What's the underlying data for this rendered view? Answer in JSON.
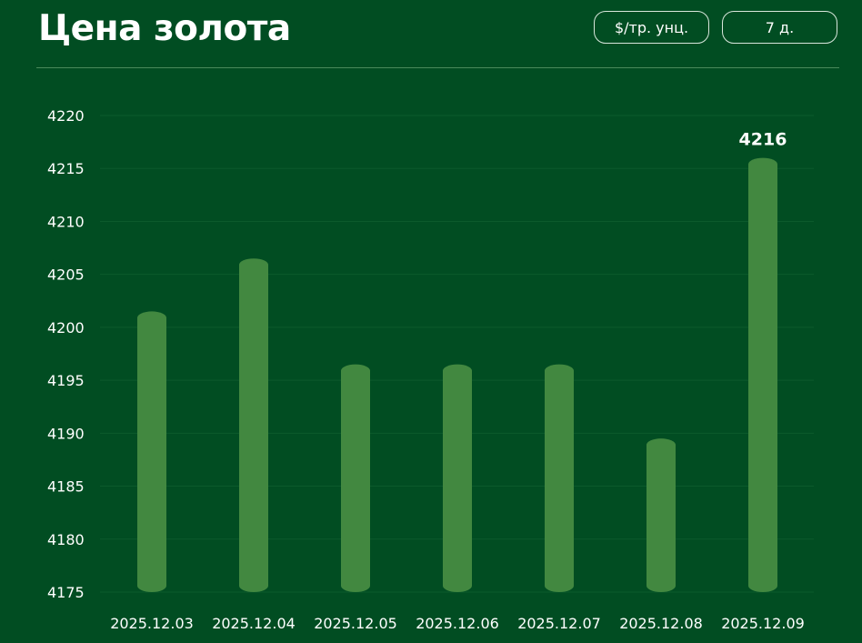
{
  "header": {
    "title": "Цена золота",
    "unit_button": "$/тр. унц.",
    "range_button": "7 д."
  },
  "colors": {
    "background": "#014d22",
    "bar": "#428840",
    "grid": "#0c5a2c"
  },
  "chart_data": {
    "type": "bar",
    "categories": [
      "2025.12.03",
      "2025.12.04",
      "2025.12.05",
      "2025.12.06",
      "2025.12.07",
      "2025.12.08",
      "2025.12.09"
    ],
    "values": [
      4201.5,
      4206.5,
      4196.5,
      4196.5,
      4196.5,
      4189.5,
      4216
    ],
    "ylim": [
      4175,
      4220
    ],
    "yticks": [
      4175,
      4180,
      4185,
      4190,
      4195,
      4200,
      4205,
      4210,
      4215,
      4220
    ],
    "highlight_label": "4216",
    "grid": true
  }
}
